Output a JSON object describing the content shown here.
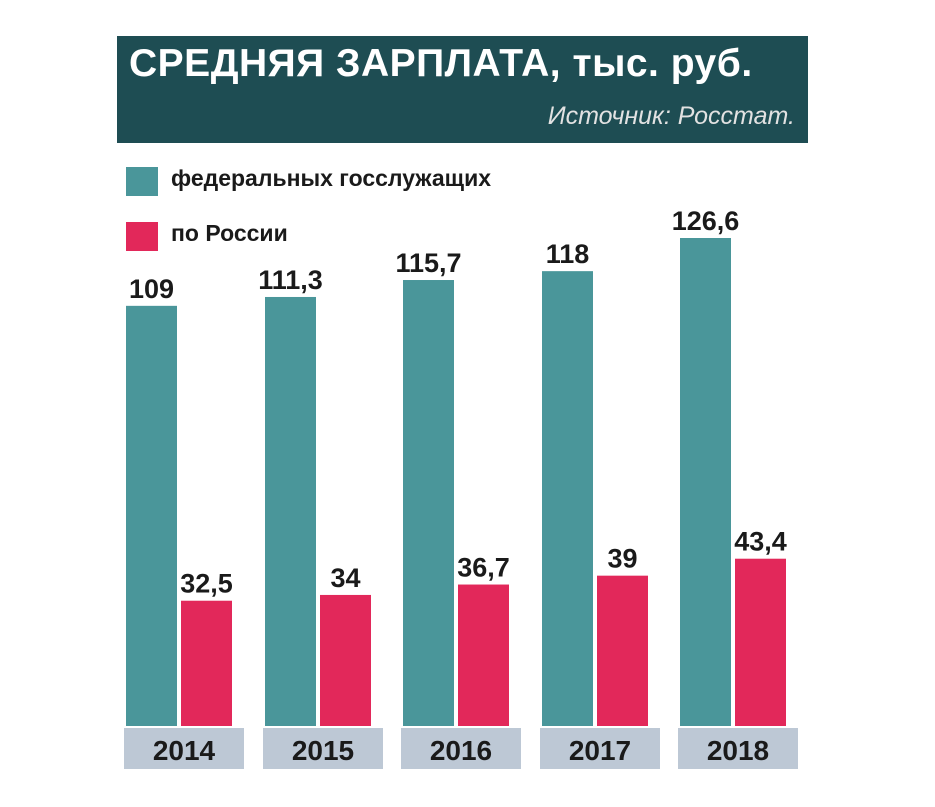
{
  "header": {
    "title": "СРЕДНЯЯ ЗАРПЛАТА, тыс. руб.",
    "source": "Источник: Росстат."
  },
  "colors": {
    "header_bg": "#1e4d53",
    "series_federal": "#4a969a",
    "series_russia": "#e2285a",
    "year_label_bg": "#bdc8d5"
  },
  "chart_data": {
    "type": "bar",
    "title": "СРЕДНЯЯ ЗАРПЛАТА, тыс. руб.",
    "categories": [
      "2014",
      "2015",
      "2016",
      "2017",
      "2018"
    ],
    "series": [
      {
        "name": "федеральных госслужащих",
        "values": [
          109,
          111.3,
          115.7,
          118,
          126.6
        ],
        "labels": [
          "109",
          "111,3",
          "115,7",
          "118",
          "126,6"
        ]
      },
      {
        "name": "по России",
        "values": [
          32.5,
          34,
          36.7,
          39,
          43.4
        ],
        "labels": [
          "32,5",
          "34",
          "36,7",
          "39",
          "43,4"
        ]
      }
    ],
    "ylim": [
      0,
      126.6
    ],
    "grid": false,
    "legend": "top-left"
  }
}
